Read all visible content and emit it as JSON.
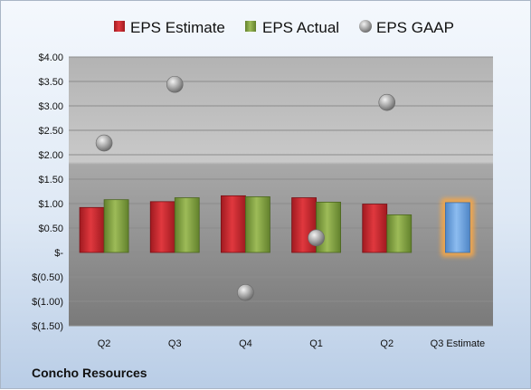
{
  "company_label": "Concho Resources",
  "chart_data": {
    "type": "bar",
    "categories": [
      "Q2",
      "Q3",
      "Q4",
      "Q1",
      "Q2",
      "Q3 Estimate"
    ],
    "series": [
      {
        "name": "EPS Estimate",
        "color": "#c0272d",
        "values": [
          0.92,
          1.04,
          1.16,
          1.12,
          0.99,
          null
        ]
      },
      {
        "name": "EPS Actual",
        "color": "#7f9e3f",
        "values": [
          1.08,
          1.12,
          1.14,
          1.03,
          0.77,
          null
        ]
      },
      {
        "name": "EPS GAAP",
        "color": "#9a9a9a",
        "marker": "circle",
        "values": [
          2.24,
          3.44,
          -0.82,
          0.3,
          3.07,
          null
        ]
      },
      {
        "name": "",
        "color": "#6fa4dd",
        "highlight": "#f3a64a",
        "values": [
          null,
          null,
          null,
          null,
          null,
          1.02
        ]
      }
    ],
    "y_ticks": [
      "$4.00",
      "$3.50",
      "$3.00",
      "$2.50",
      "$2.00",
      "$1.50",
      "$1.00",
      "$0.50",
      "$-",
      "$(0.50)",
      "$(1.00)",
      "$(1.50)"
    ],
    "ylim": [
      -1.5,
      4.0
    ],
    "legend_position": "top",
    "grid": true
  }
}
